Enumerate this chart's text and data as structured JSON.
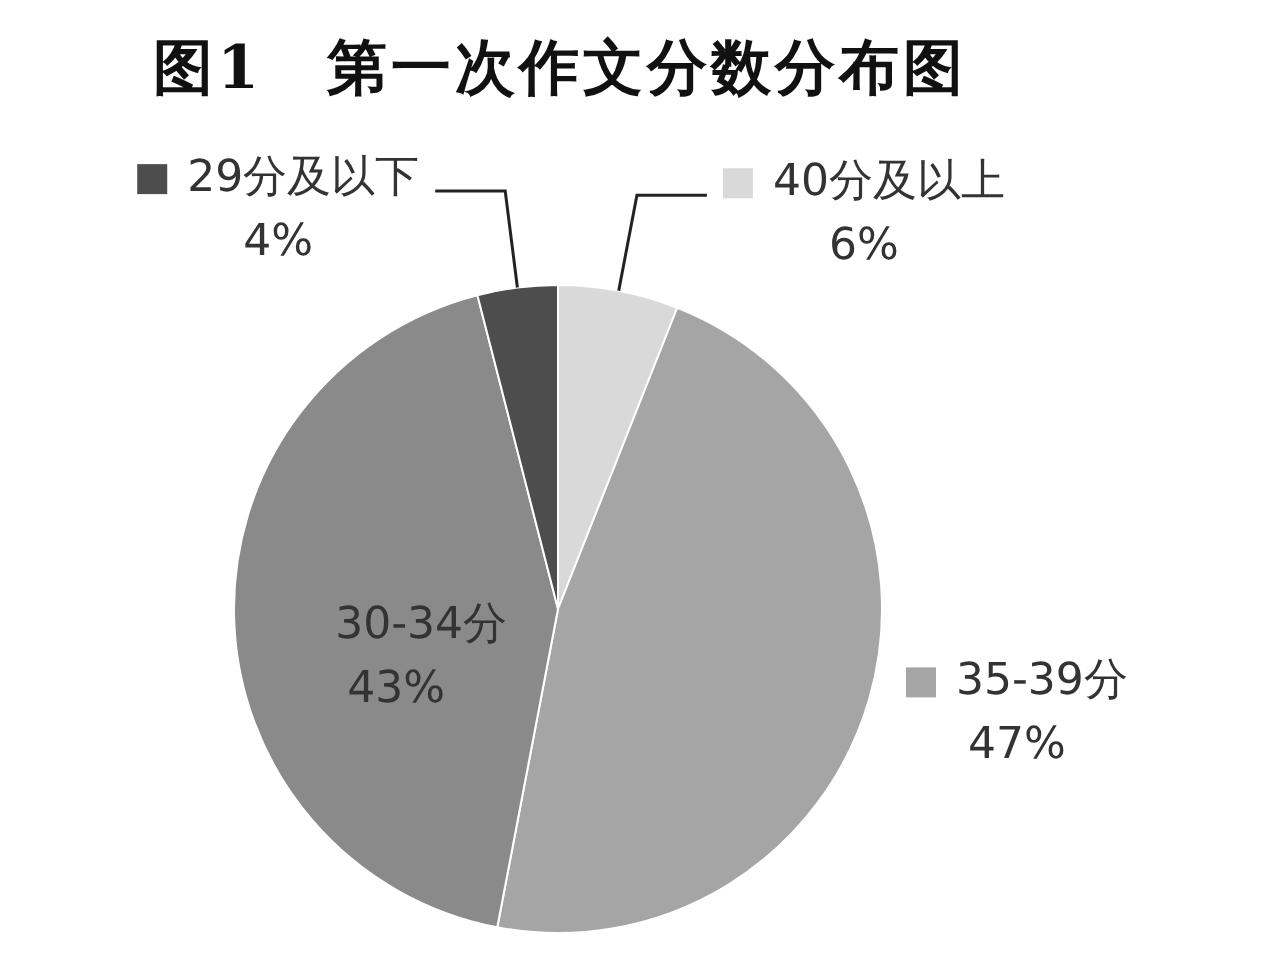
{
  "chart_data": {
    "type": "pie",
    "title": "图1　第一次作文分数分布图",
    "categories": [
      "40分及以上",
      "35-39分",
      "30-34分",
      "29分及以下"
    ],
    "values": [
      6,
      47,
      43,
      4
    ],
    "value_labels": [
      "6%",
      "47%",
      "43%",
      "4%"
    ],
    "colors": [
      "#d9d9d9",
      "#a5a5a5",
      "#8a8a8a",
      "#4d4d4d"
    ],
    "legend": "top"
  }
}
